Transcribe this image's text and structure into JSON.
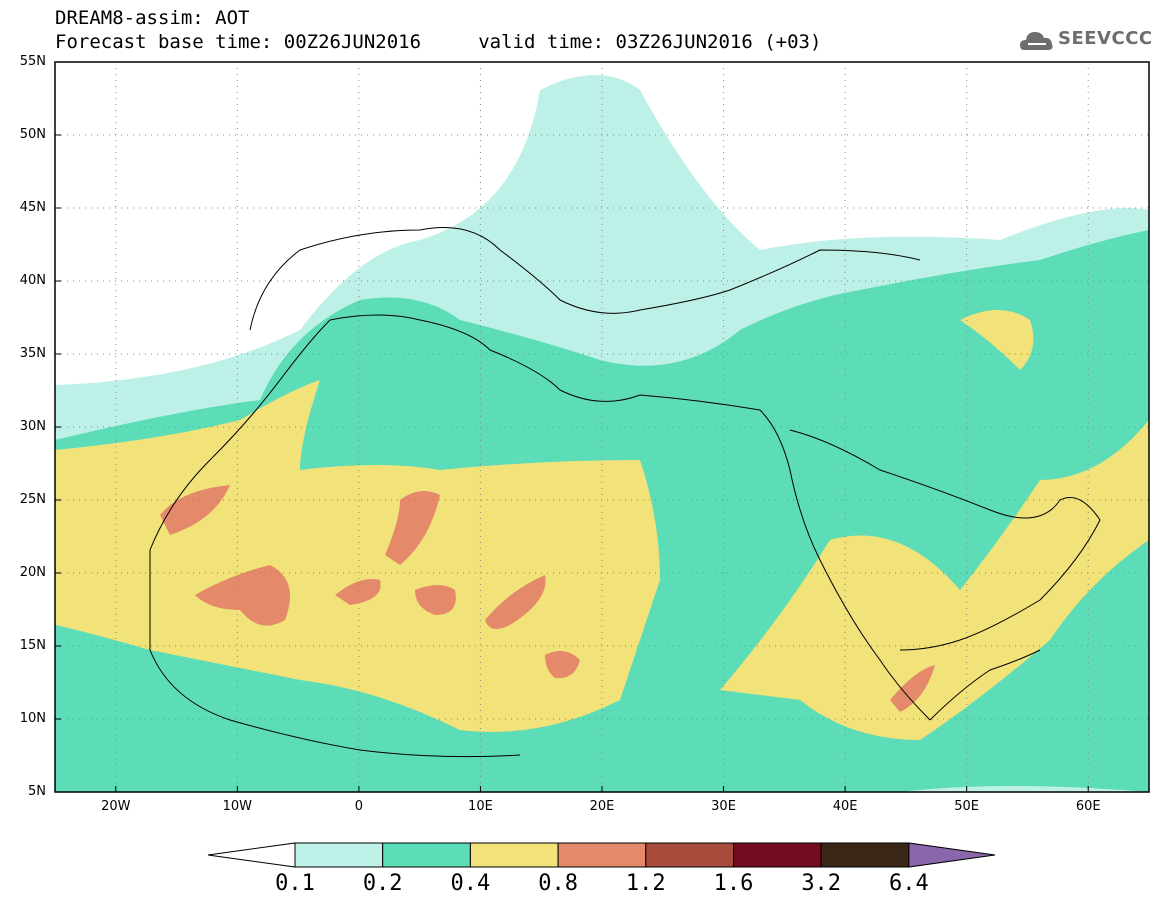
{
  "header": {
    "title_line1": "DREAM8-assim: AOT",
    "title_line2": "Forecast base time: 00Z26JUN2016     valid time: 03Z26JUN2016 (+03)"
  },
  "logo": {
    "text": "SEEVCCC",
    "icon": "cloud-logo-icon"
  },
  "map": {
    "latitude_labels": [
      {
        "lat": 55,
        "label": "55N"
      },
      {
        "lat": 50,
        "label": "50N"
      },
      {
        "lat": 45,
        "label": "45N"
      },
      {
        "lat": 40,
        "label": "40N"
      },
      {
        "lat": 35,
        "label": "35N"
      },
      {
        "lat": 30,
        "label": "30N"
      },
      {
        "lat": 25,
        "label": "25N"
      },
      {
        "lat": 20,
        "label": "20N"
      },
      {
        "lat": 15,
        "label": "15N"
      },
      {
        "lat": 10,
        "label": "10N"
      },
      {
        "lat": 5,
        "label": "5N"
      }
    ],
    "longitude_labels": [
      {
        "lon": -20,
        "label": "20W"
      },
      {
        "lon": -10,
        "label": "10W"
      },
      {
        "lon": 0,
        "label": "0"
      },
      {
        "lon": 10,
        "label": "10E"
      },
      {
        "lon": 20,
        "label": "20E"
      },
      {
        "lon": 30,
        "label": "30E"
      },
      {
        "lon": 40,
        "label": "40E"
      },
      {
        "lon": 50,
        "label": "50E"
      },
      {
        "lon": 60,
        "label": "60E"
      }
    ],
    "lon_range": [
      -25,
      65
    ],
    "lat_range": [
      5,
      55
    ]
  },
  "colorbar": {
    "labels": [
      "0.1",
      "0.2",
      "0.4",
      "0.8",
      "1.2",
      "1.6",
      "3.2",
      "6.4"
    ],
    "colors": [
      "#ffffff",
      "#bdf0e6",
      "#5ddcb8",
      "#f2e27a",
      "#e4896a",
      "#a84a3c",
      "#720a20",
      "#3a2616",
      "#8a66aa"
    ]
  }
}
